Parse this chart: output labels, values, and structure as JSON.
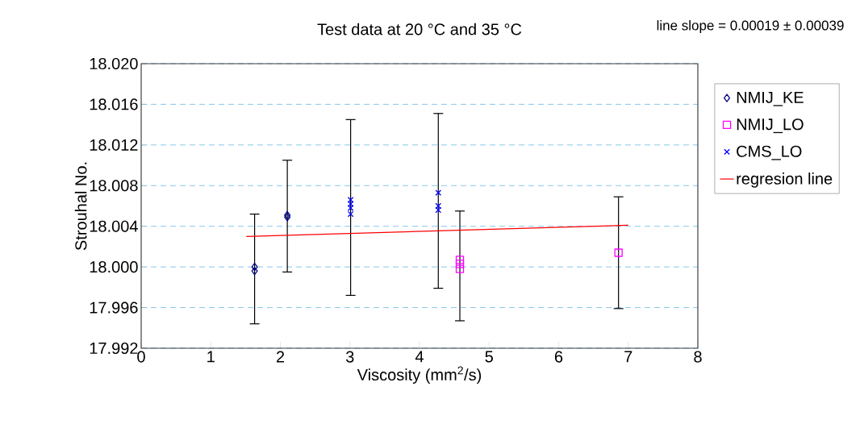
{
  "chart_data": {
    "type": "scatter",
    "title": "Test data at 20 °C and 35 °C",
    "xlabel": "Viscosity (mm$^{2}$/s)",
    "ylabel": "Strouhal No.",
    "annotations": [
      "line slope = 0.00019 ± 0.00039"
    ],
    "xlim": [
      0,
      8
    ],
    "xticks": [
      0,
      1,
      2,
      3,
      4,
      5,
      6,
      7,
      8
    ],
    "ylim": [
      17.992,
      18.02
    ],
    "yticks": [
      17.992,
      17.996,
      {
        "value": 18.0,
        "label": "18.000"
      },
      18.004,
      18.008,
      18.012,
      18.016,
      {
        "value": 18.02,
        "label": "18.020"
      }
    ],
    "grid": "y",
    "legend": "right",
    "series": [
      {
        "name": "NMIJ_KE",
        "marker": "diamond",
        "color": "#000080",
        "x": [
          1.63,
          1.63,
          2.1,
          2.1
        ],
        "values": [
          18.0,
          17.9996,
          18.0051,
          18.0049
        ],
        "errors": [
          [
            17.9944,
            18.0052
          ],
          null,
          [
            17.9995,
            18.0105
          ],
          null
        ]
      },
      {
        "name": "NMIJ_LO",
        "marker": "square",
        "color": "#ff00ff",
        "x": [
          4.58,
          4.58,
          4.58,
          6.86
        ],
        "values": [
          18.0007,
          18.0003,
          17.9998,
          18.0014
        ],
        "errors": [
          null,
          [
            17.9947,
            18.0055
          ],
          null,
          [
            17.9959,
            18.0069
          ]
        ]
      },
      {
        "name": "CMS_LO",
        "marker": "cross",
        "color": "#0000ff",
        "x": [
          3.01,
          3.01,
          3.01,
          3.01,
          4.27,
          4.27,
          4.27
        ],
        "values": [
          18.0066,
          18.0062,
          18.0058,
          18.0052,
          18.0073,
          18.006,
          18.0056
        ],
        "errors": [
          null,
          [
            17.9972,
            18.0145
          ],
          null,
          null,
          null,
          [
            17.9979,
            18.0151
          ],
          null
        ]
      },
      {
        "name": "regresion line",
        "type": "line",
        "marker": "none",
        "color": "#ff0000",
        "x": [
          1.51,
          7.0
        ],
        "values": [
          18.003,
          18.0041
        ]
      }
    ]
  }
}
